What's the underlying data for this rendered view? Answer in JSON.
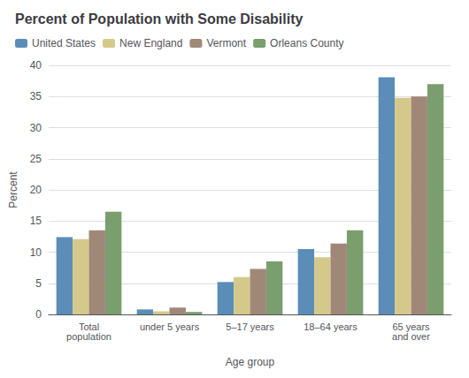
{
  "chart_data": {
    "type": "bar",
    "title": "Percent of Population with Some Disability",
    "xlabel": "Age group",
    "ylabel": "Percent",
    "categories": [
      "Total\npopulation",
      "under 5 years",
      "5–17 years",
      "18–64 years",
      "65 years\nand over"
    ],
    "series": [
      {
        "name": "United States",
        "color": "#5b8db8",
        "values": [
          12.4,
          0.8,
          5.2,
          10.5,
          38.1
        ]
      },
      {
        "name": "New England",
        "color": "#d4c98a",
        "values": [
          12.1,
          0.5,
          6.0,
          9.2,
          34.8
        ]
      },
      {
        "name": "Vermont",
        "color": "#a08878",
        "values": [
          13.5,
          1.1,
          7.3,
          11.4,
          35.0
        ]
      },
      {
        "name": "Orleans County",
        "color": "#7a9e6e",
        "values": [
          16.5,
          0.4,
          8.5,
          13.5,
          37.0
        ]
      }
    ],
    "ylim": [
      0,
      40
    ],
    "yticks": [
      0,
      5,
      10,
      15,
      20,
      25,
      30,
      35,
      40
    ],
    "grid": true,
    "legend": "upper left"
  }
}
